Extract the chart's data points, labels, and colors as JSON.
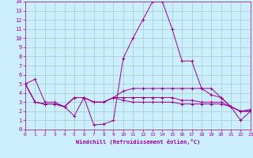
{
  "xlabel": "Windchill (Refroidissement éolien,°C)",
  "background_color": "#cceeff",
  "grid_color": "#9ecfbf",
  "line_color": "#990099",
  "xlim": [
    0,
    23
  ],
  "ylim": [
    0,
    14
  ],
  "xticks": [
    0,
    1,
    2,
    3,
    4,
    5,
    6,
    7,
    8,
    9,
    10,
    11,
    12,
    13,
    14,
    15,
    16,
    17,
    18,
    19,
    20,
    21,
    22,
    23
  ],
  "yticks": [
    0,
    1,
    2,
    3,
    4,
    5,
    6,
    7,
    8,
    9,
    10,
    11,
    12,
    13,
    14
  ],
  "lines": [
    [
      5.0,
      5.5,
      3.0,
      3.0,
      2.5,
      1.5,
      3.5,
      0.5,
      0.6,
      1.0,
      7.8,
      10.0,
      12.0,
      14.0,
      14.0,
      11.0,
      7.5,
      7.5,
      4.5,
      4.5,
      3.5,
      2.5,
      1.0,
      2.0
    ],
    [
      5.0,
      3.0,
      2.8,
      2.8,
      2.5,
      3.5,
      3.5,
      3.0,
      3.0,
      3.5,
      4.2,
      4.5,
      4.5,
      4.5,
      4.5,
      4.5,
      4.5,
      4.5,
      4.5,
      3.8,
      3.5,
      2.5,
      2.0,
      2.2
    ],
    [
      5.0,
      3.0,
      2.8,
      2.8,
      2.5,
      3.5,
      3.5,
      3.0,
      3.0,
      3.5,
      3.5,
      3.5,
      3.5,
      3.5,
      3.5,
      3.5,
      3.2,
      3.2,
      3.0,
      3.0,
      3.0,
      2.5,
      2.0,
      2.0
    ],
    [
      5.0,
      3.0,
      2.8,
      2.8,
      2.5,
      3.5,
      3.5,
      3.0,
      3.0,
      3.5,
      3.2,
      3.0,
      3.0,
      3.0,
      3.0,
      3.0,
      2.8,
      2.8,
      2.8,
      2.8,
      2.8,
      2.5,
      2.0,
      2.0
    ]
  ]
}
